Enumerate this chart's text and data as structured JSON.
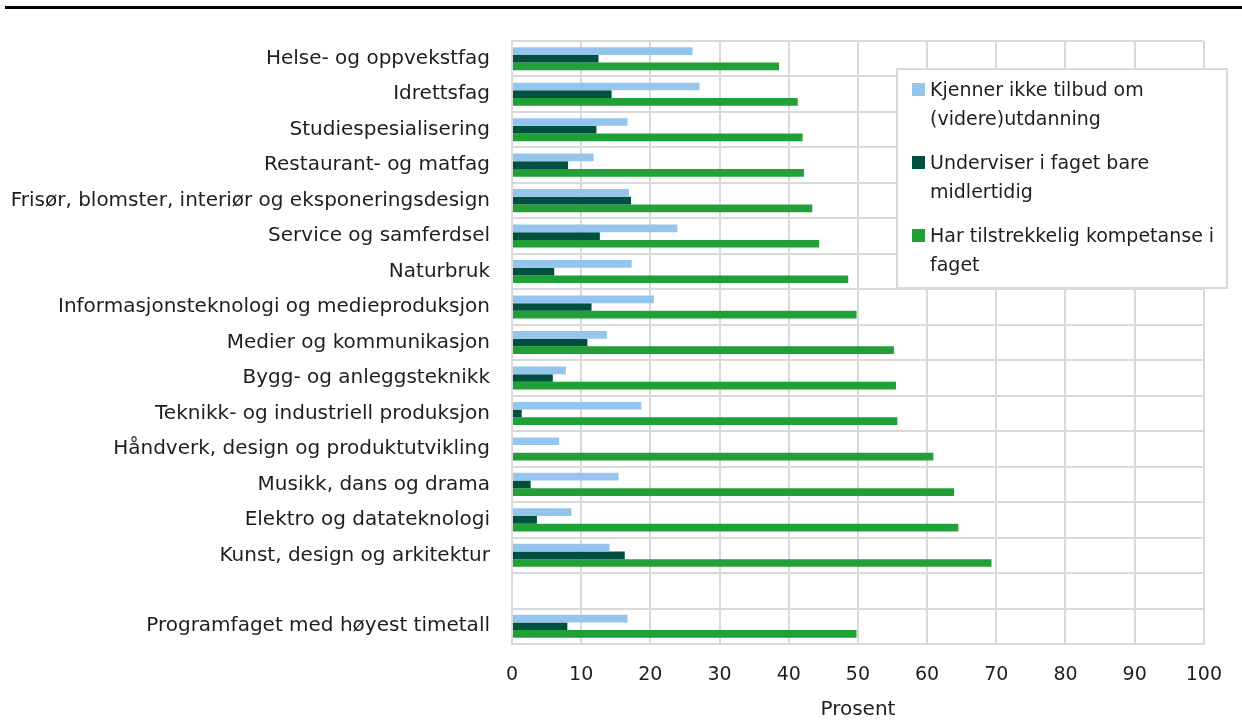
{
  "chart_data": {
    "type": "bar",
    "orientation": "horizontal",
    "xlabel": "Prosent",
    "categories": [
      "Helse- og oppvekstfag",
      "Idrettsfag",
      "Studiespesialisering",
      "Restaurant- og matfag",
      "Frisør, blomster, interiør og eksponeringsdesign",
      "Service og samferdsel",
      "Naturbruk",
      "Informasjonsteknologi og medieproduksjon",
      "Medier og kommunikasjon",
      "Bygg- og anleggsteknikk",
      "Teknikk- og industriell produksjon",
      "Håndverk, design og produktutvikling",
      "Musikk, dans og drama",
      "Elektro og datateknologi",
      "Kunst, design og arkitektur",
      null,
      "Programfaget med høyest timetall"
    ],
    "series": [
      {
        "name": "Kjenner ikke tilbud om (videre)utdanning",
        "color": "#95c5ec",
        "values": [
          26.1,
          27.1,
          16.7,
          11.8,
          16.9,
          23.9,
          17.3,
          20.5,
          13.7,
          7.8,
          18.7,
          6.8,
          15.4,
          8.6,
          14.1,
          null,
          16.7
        ]
      },
      {
        "name": "Underviser i faget bare midlertidig",
        "color": "#00503f",
        "values": [
          12.5,
          14.4,
          12.2,
          8.1,
          17.2,
          12.7,
          6.1,
          11.5,
          10.9,
          5.9,
          1.4,
          0,
          2.7,
          3.6,
          16.3,
          null,
          8.0
        ]
      },
      {
        "name": "Har tilstrekkelig kompetanse i faget",
        "color": "#21a038",
        "values": [
          38.6,
          41.3,
          42.0,
          42.2,
          43.4,
          44.4,
          48.6,
          49.8,
          55.2,
          55.5,
          55.7,
          60.9,
          63.9,
          64.5,
          69.3,
          null,
          49.8
        ]
      }
    ],
    "xlim": [
      0,
      100
    ],
    "xticks": [
      0,
      10,
      20,
      30,
      40,
      50,
      60,
      70,
      80,
      90,
      100
    ],
    "grid": true,
    "legend": "top right"
  }
}
